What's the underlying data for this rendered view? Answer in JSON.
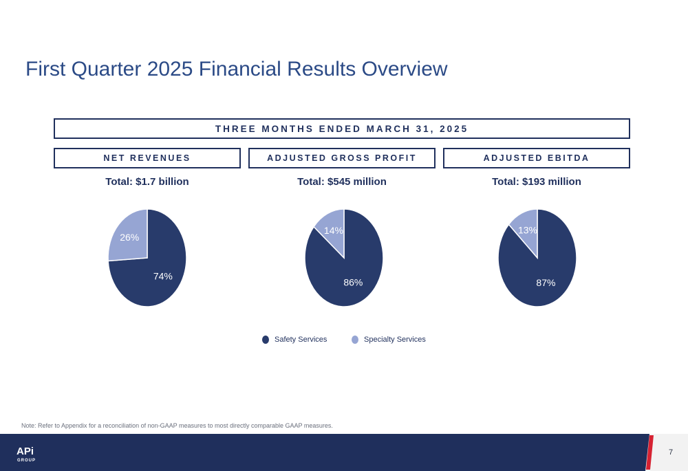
{
  "page": {
    "title": "First Quarter 2025 Financial Results Overview",
    "period_header": "THREE MONTHS ENDED MARCH 31, 2025",
    "note": "Note:  Refer to Appendix for a reconciliation of non-GAAP measures to most directly comparable GAAP measures.",
    "page_number": "7",
    "logo_text": "APi GROUP"
  },
  "colors": {
    "safety": "#283b6b",
    "specialty": "#96a5d3",
    "navy": "#1f2f5c"
  },
  "sections": [
    {
      "header": "NET REVENUES",
      "total": "Total: $1.7 billion"
    },
    {
      "header": "ADJUSTED GROSS PROFIT",
      "total": "Total: $545 million"
    },
    {
      "header": "ADJUSTED EBITDA",
      "total": "Total: $193 million"
    }
  ],
  "legend": {
    "safety": "Safety Services",
    "specialty": "Specialty Services"
  },
  "chart_data": [
    {
      "type": "pie",
      "title": "Total: $1.7 billion",
      "categories": [
        "Safety Services",
        "Specialty Services"
      ],
      "values": [
        74,
        26
      ],
      "labels": [
        "74%",
        "26%"
      ]
    },
    {
      "type": "pie",
      "title": "Total: $545 million",
      "categories": [
        "Safety Services",
        "Specialty Services"
      ],
      "values": [
        86,
        14
      ],
      "labels": [
        "86%",
        "14%"
      ]
    },
    {
      "type": "pie",
      "title": "Total: $193 million",
      "categories": [
        "Safety Services",
        "Specialty Services"
      ],
      "values": [
        87,
        13
      ],
      "labels": [
        "87%",
        "13%"
      ]
    }
  ]
}
